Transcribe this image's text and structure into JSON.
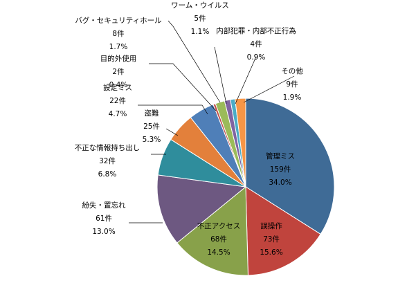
{
  "chart_data": {
    "type": "pie",
    "title": "",
    "start_angle_deg": 90,
    "direction": "clockwise",
    "count_suffix": "件",
    "slices": [
      {
        "label": "管理ミス",
        "count": 159,
        "count_text": "159件",
        "percent": 34.0,
        "percent_text": "34.0%",
        "color": "#3f6b96"
      },
      {
        "label": "誤操作",
        "count": 73,
        "count_text": "73件",
        "percent": 15.6,
        "percent_text": "15.6%",
        "color": "#c0443d"
      },
      {
        "label": "不正アクセス",
        "count": 68,
        "count_text": "68件",
        "percent": 14.5,
        "percent_text": "14.5%",
        "color": "#88a14a"
      },
      {
        "label": "紛失・置忘れ",
        "count": 61,
        "count_text": "61件",
        "percent": 13.0,
        "percent_text": "13.0%",
        "color": "#6d5881"
      },
      {
        "label": "不正な情報持ち出し",
        "count": 32,
        "count_text": "32件",
        "percent": 6.8,
        "percent_text": "6.8%",
        "color": "#2f8d9c"
      },
      {
        "label": "盗難",
        "count": 25,
        "count_text": "25件",
        "percent": 5.3,
        "percent_text": "5.3%",
        "color": "#e3803b"
      },
      {
        "label": "設定ミス",
        "count": 22,
        "count_text": "22件",
        "percent": 4.7,
        "percent_text": "4.7%",
        "color": "#4f7fb8"
      },
      {
        "label": "目的外使用",
        "count": 2,
        "count_text": "2件",
        "percent": 0.4,
        "percent_text": "0.4%",
        "color": "#c0504d"
      },
      {
        "label": "バグ・セキュリティホール",
        "count": 8,
        "count_text": "8件",
        "percent": 1.7,
        "percent_text": "1.7%",
        "color": "#9bbb59"
      },
      {
        "label": "ワーム・ウイルス",
        "count": 5,
        "count_text": "5件",
        "percent": 1.1,
        "percent_text": "1.1%",
        "color": "#8064a2"
      },
      {
        "label": "内部犯罪・内部不正行為",
        "count": 4,
        "count_text": "4件",
        "percent": 0.9,
        "percent_text": "0.9%",
        "color": "#4bacc6"
      },
      {
        "label": "その他",
        "count": 9,
        "count_text": "9件",
        "percent": 1.9,
        "percent_text": "1.9%",
        "color": "#f79646"
      }
    ]
  }
}
